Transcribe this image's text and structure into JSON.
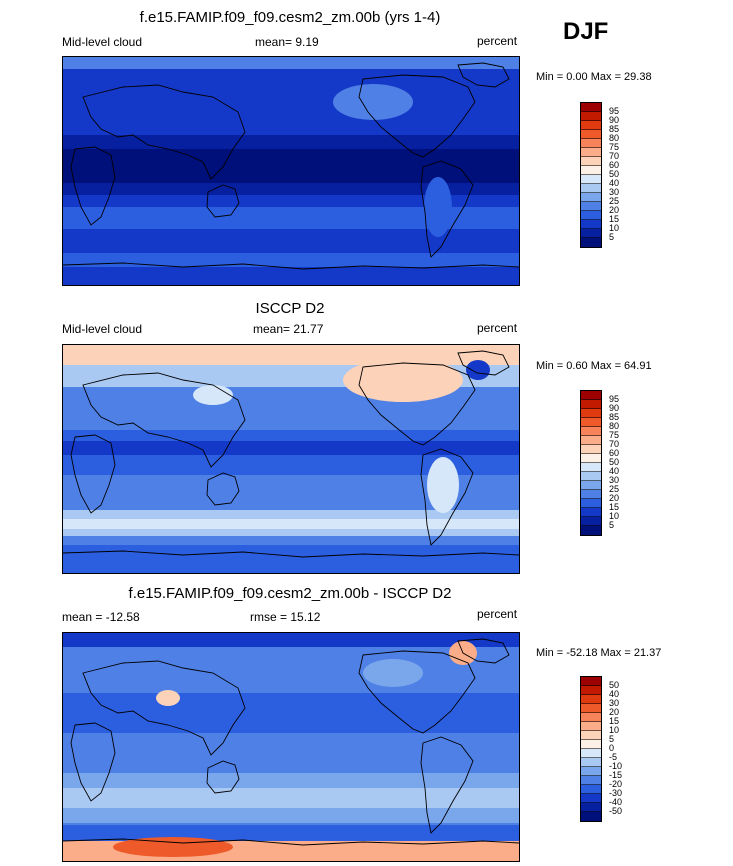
{
  "season": "DJF",
  "panels": [
    {
      "title": "f.e15.FAMIP.f09_f09.cesm2_zm.00b (yrs 1-4)",
      "left_text": "Mid-level cloud",
      "center_text": "mean=  9.19",
      "right_text": "percent",
      "minmax": "Min =   0.00 Max =  29.38",
      "colorbar_labels": [
        "95",
        "90",
        "85",
        "80",
        "75",
        "70",
        "60",
        "50",
        "40",
        "30",
        "25",
        "20",
        "15",
        "10",
        "5"
      ],
      "colorbar_colors": [
        "#9c0000",
        "#c21a00",
        "#df3a10",
        "#ee5a2a",
        "#f7835a",
        "#fbac88",
        "#fcd2b8",
        "#fdf0e6",
        "#d6e7fa",
        "#a9c8f2",
        "#7aa6ec",
        "#4f80e6",
        "#2c5ee0",
        "#1438c8",
        "#0620a0",
        "#00107a"
      ],
      "map_style": "model"
    },
    {
      "title": "ISCCP D2",
      "left_text": "Mid-level cloud",
      "center_text": "mean=  21.77",
      "right_text": "percent",
      "minmax": "Min =   0.60 Max =  64.91",
      "colorbar_labels": [
        "95",
        "90",
        "85",
        "80",
        "75",
        "70",
        "60",
        "50",
        "40",
        "30",
        "25",
        "20",
        "15",
        "10",
        "5"
      ],
      "colorbar_colors": [
        "#9c0000",
        "#c21a00",
        "#df3a10",
        "#ee5a2a",
        "#f7835a",
        "#fbac88",
        "#fcd2b8",
        "#fdf0e6",
        "#d6e7fa",
        "#a9c8f2",
        "#7aa6ec",
        "#4f80e6",
        "#2c5ee0",
        "#1438c8",
        "#0620a0",
        "#00107a"
      ],
      "map_style": "obs"
    },
    {
      "title": "f.e15.FAMIP.f09_f09.cesm2_zm.00b - ISCCP D2",
      "left_text": "mean = -12.58",
      "center_text": "rmse =  15.12",
      "right_text": "percent",
      "minmax": "Min = -52.18 Max =  21.37",
      "colorbar_labels": [
        "50",
        "40",
        "30",
        "20",
        "15",
        "10",
        "5",
        "0",
        "-5",
        "-10",
        "-15",
        "-20",
        "-30",
        "-40",
        "-50"
      ],
      "colorbar_colors": [
        "#9c0000",
        "#c21a00",
        "#df3a10",
        "#ee5a2a",
        "#f7835a",
        "#fbac88",
        "#fcd2b8",
        "#fdf0e6",
        "#d6e7fa",
        "#a9c8f2",
        "#7aa6ec",
        "#4f80e6",
        "#2c5ee0",
        "#1438c8",
        "#0620a0",
        "#00107a"
      ],
      "map_style": "diff"
    }
  ]
}
